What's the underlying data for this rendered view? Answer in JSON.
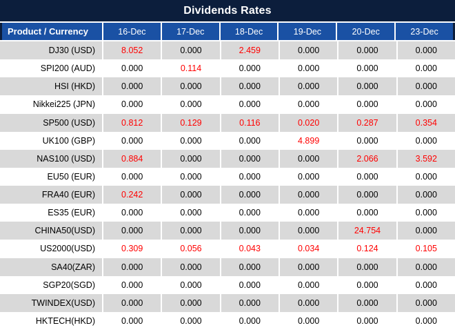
{
  "title": "Dividends Rates",
  "columns": [
    "Product / Currency",
    "16-Dec",
    "17-Dec",
    "18-Dec",
    "19-Dec",
    "20-Dec",
    "23-Dec"
  ],
  "rows": [
    {
      "product": "DJ30 (USD)",
      "values": [
        "8.052",
        "0.000",
        "2.459",
        "0.000",
        "0.000",
        "0.000"
      ]
    },
    {
      "product": "SPI200 (AUD)",
      "values": [
        "0.000",
        "0.114",
        "0.000",
        "0.000",
        "0.000",
        "0.000"
      ]
    },
    {
      "product": "HSI (HKD)",
      "values": [
        "0.000",
        "0.000",
        "0.000",
        "0.000",
        "0.000",
        "0.000"
      ]
    },
    {
      "product": "Nikkei225 (JPN)",
      "values": [
        "0.000",
        "0.000",
        "0.000",
        "0.000",
        "0.000",
        "0.000"
      ]
    },
    {
      "product": "SP500 (USD)",
      "values": [
        "0.812",
        "0.129",
        "0.116",
        "0.020",
        "0.287",
        "0.354"
      ]
    },
    {
      "product": "UK100 (GBP)",
      "values": [
        "0.000",
        "0.000",
        "0.000",
        "4.899",
        "0.000",
        "0.000"
      ]
    },
    {
      "product": "NAS100 (USD)",
      "values": [
        "0.884",
        "0.000",
        "0.000",
        "0.000",
        "2.066",
        "3.592"
      ]
    },
    {
      "product": "EU50 (EUR)",
      "values": [
        "0.000",
        "0.000",
        "0.000",
        "0.000",
        "0.000",
        "0.000"
      ]
    },
    {
      "product": "FRA40 (EUR)",
      "values": [
        "0.242",
        "0.000",
        "0.000",
        "0.000",
        "0.000",
        "0.000"
      ]
    },
    {
      "product": "ES35 (EUR)",
      "values": [
        "0.000",
        "0.000",
        "0.000",
        "0.000",
        "0.000",
        "0.000"
      ]
    },
    {
      "product": "CHINA50(USD)",
      "values": [
        "0.000",
        "0.000",
        "0.000",
        "0.000",
        "24.754",
        "0.000"
      ]
    },
    {
      "product": "US2000(USD)",
      "values": [
        "0.309",
        "0.056",
        "0.043",
        "0.034",
        "0.124",
        "0.105"
      ]
    },
    {
      "product": "SA40(ZAR)",
      "values": [
        "0.000",
        "0.000",
        "0.000",
        "0.000",
        "0.000",
        "0.000"
      ]
    },
    {
      "product": "SGP20(SGD)",
      "values": [
        "0.000",
        "0.000",
        "0.000",
        "0.000",
        "0.000",
        "0.000"
      ]
    },
    {
      "product": "TWINDEX(USD)",
      "values": [
        "0.000",
        "0.000",
        "0.000",
        "0.000",
        "0.000",
        "0.000"
      ]
    },
    {
      "product": "HKTECH(HKD)",
      "values": [
        "0.000",
        "0.000",
        "0.000",
        "0.000",
        "0.000",
        "0.000"
      ]
    }
  ],
  "colors": {
    "title_bg": "#0c1e3c",
    "header_bg": "#1a51a4",
    "stripe": "#d9d9d9",
    "highlight": "#ff0000",
    "text": "#000000",
    "header_text": "#ffffff"
  },
  "chart_data": {
    "type": "table",
    "title": "Dividends Rates",
    "categories": [
      "16-Dec",
      "17-Dec",
      "18-Dec",
      "19-Dec",
      "20-Dec",
      "23-Dec"
    ],
    "series": [
      {
        "name": "DJ30 (USD)",
        "values": [
          8.052,
          0.0,
          2.459,
          0.0,
          0.0,
          0.0
        ]
      },
      {
        "name": "SPI200 (AUD)",
        "values": [
          0.0,
          0.114,
          0.0,
          0.0,
          0.0,
          0.0
        ]
      },
      {
        "name": "HSI (HKD)",
        "values": [
          0.0,
          0.0,
          0.0,
          0.0,
          0.0,
          0.0
        ]
      },
      {
        "name": "Nikkei225 (JPN)",
        "values": [
          0.0,
          0.0,
          0.0,
          0.0,
          0.0,
          0.0
        ]
      },
      {
        "name": "SP500 (USD)",
        "values": [
          0.812,
          0.129,
          0.116,
          0.02,
          0.287,
          0.354
        ]
      },
      {
        "name": "UK100 (GBP)",
        "values": [
          0.0,
          0.0,
          0.0,
          4.899,
          0.0,
          0.0
        ]
      },
      {
        "name": "NAS100 (USD)",
        "values": [
          0.884,
          0.0,
          0.0,
          0.0,
          2.066,
          3.592
        ]
      },
      {
        "name": "EU50 (EUR)",
        "values": [
          0.0,
          0.0,
          0.0,
          0.0,
          0.0,
          0.0
        ]
      },
      {
        "name": "FRA40 (EUR)",
        "values": [
          0.242,
          0.0,
          0.0,
          0.0,
          0.0,
          0.0
        ]
      },
      {
        "name": "ES35 (EUR)",
        "values": [
          0.0,
          0.0,
          0.0,
          0.0,
          0.0,
          0.0
        ]
      },
      {
        "name": "CHINA50(USD)",
        "values": [
          0.0,
          0.0,
          0.0,
          0.0,
          24.754,
          0.0
        ]
      },
      {
        "name": "US2000(USD)",
        "values": [
          0.309,
          0.056,
          0.043,
          0.034,
          0.124,
          0.105
        ]
      },
      {
        "name": "SA40(ZAR)",
        "values": [
          0.0,
          0.0,
          0.0,
          0.0,
          0.0,
          0.0
        ]
      },
      {
        "name": "SGP20(SGD)",
        "values": [
          0.0,
          0.0,
          0.0,
          0.0,
          0.0,
          0.0
        ]
      },
      {
        "name": "TWINDEX(USD)",
        "values": [
          0.0,
          0.0,
          0.0,
          0.0,
          0.0,
          0.0
        ]
      },
      {
        "name": "HKTECH(HKD)",
        "values": [
          0.0,
          0.0,
          0.0,
          0.0,
          0.0,
          0.0
        ]
      }
    ]
  }
}
